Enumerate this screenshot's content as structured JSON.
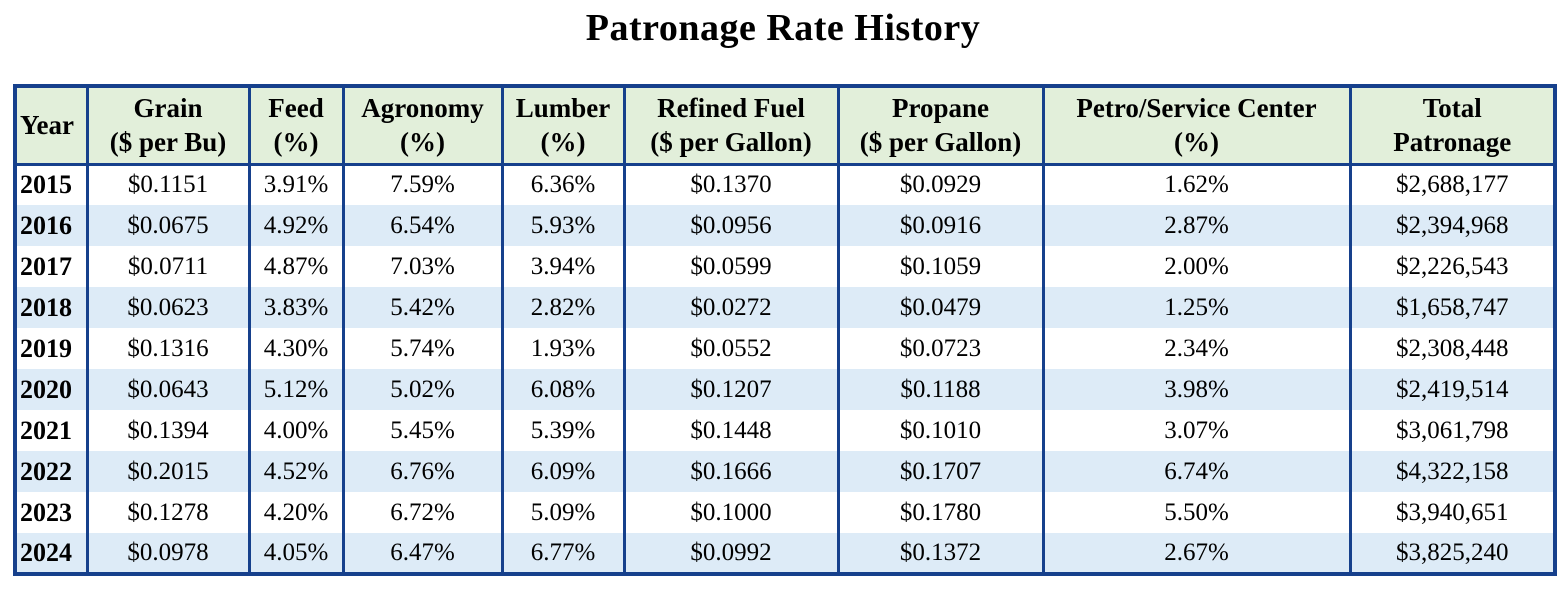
{
  "title": "Patronage Rate History",
  "colors": {
    "border": "#16408C",
    "header_bg": "#E2EFDA",
    "stripe_bg": "#DDEBF7",
    "row_bg": "#FFFFFF"
  },
  "table": {
    "columns": [
      {
        "label": "Year",
        "unit": ""
      },
      {
        "label": "Grain",
        "unit": "($ per Bu)"
      },
      {
        "label": "Feed",
        "unit": "(%)"
      },
      {
        "label": "Agronomy",
        "unit": "(%)"
      },
      {
        "label": "Lumber",
        "unit": "(%)"
      },
      {
        "label": "Refined Fuel",
        "unit": "($ per Gallon)"
      },
      {
        "label": "Propane",
        "unit": "($ per Gallon)"
      },
      {
        "label": "Petro/Service Center",
        "unit": "(%)"
      },
      {
        "label": "Total",
        "unit": "Patronage"
      }
    ],
    "rows": [
      [
        "2015",
        "$0.1151",
        "3.91%",
        "7.59%",
        "6.36%",
        "$0.1370",
        "$0.0929",
        "1.62%",
        "$2,688,177"
      ],
      [
        "2016",
        "$0.0675",
        "4.92%",
        "6.54%",
        "5.93%",
        "$0.0956",
        "$0.0916",
        "2.87%",
        "$2,394,968"
      ],
      [
        "2017",
        "$0.0711",
        "4.87%",
        "7.03%",
        "3.94%",
        "$0.0599",
        "$0.1059",
        "2.00%",
        "$2,226,543"
      ],
      [
        "2018",
        "$0.0623",
        "3.83%",
        "5.42%",
        "2.82%",
        "$0.0272",
        "$0.0479",
        "1.25%",
        "$1,658,747"
      ],
      [
        "2019",
        "$0.1316",
        "4.30%",
        "5.74%",
        "1.93%",
        "$0.0552",
        "$0.0723",
        "2.34%",
        "$2,308,448"
      ],
      [
        "2020",
        "$0.0643",
        "5.12%",
        "5.02%",
        "6.08%",
        "$0.1207",
        "$0.1188",
        "3.98%",
        "$2,419,514"
      ],
      [
        "2021",
        "$0.1394",
        "4.00%",
        "5.45%",
        "5.39%",
        "$0.1448",
        "$0.1010",
        "3.07%",
        "$3,061,798"
      ],
      [
        "2022",
        "$0.2015",
        "4.52%",
        "6.76%",
        "6.09%",
        "$0.1666",
        "$0.1707",
        "6.74%",
        "$4,322,158"
      ],
      [
        "2023",
        "$0.1278",
        "4.20%",
        "6.72%",
        "5.09%",
        "$0.1000",
        "$0.1780",
        "5.50%",
        "$3,940,651"
      ],
      [
        "2024",
        "$0.0978",
        "4.05%",
        "6.47%",
        "6.77%",
        "$0.0992",
        "$0.1372",
        "2.67%",
        "$3,825,240"
      ]
    ]
  },
  "chart_data": {
    "type": "table",
    "title": "Patronage Rate History",
    "columns": [
      "Year",
      "Grain ($ per Bu)",
      "Feed (%)",
      "Agronomy (%)",
      "Lumber (%)",
      "Refined Fuel ($ per Gallon)",
      "Propane ($ per Gallon)",
      "Petro/Service Center (%)",
      "Total Patronage ($)"
    ],
    "rows": [
      [
        2015,
        0.1151,
        3.91,
        7.59,
        6.36,
        0.137,
        0.0929,
        1.62,
        2688177
      ],
      [
        2016,
        0.0675,
        4.92,
        6.54,
        5.93,
        0.0956,
        0.0916,
        2.87,
        2394968
      ],
      [
        2017,
        0.0711,
        4.87,
        7.03,
        3.94,
        0.0599,
        0.1059,
        2.0,
        2226543
      ],
      [
        2018,
        0.0623,
        3.83,
        5.42,
        2.82,
        0.0272,
        0.0479,
        1.25,
        1658747
      ],
      [
        2019,
        0.1316,
        4.3,
        5.74,
        1.93,
        0.0552,
        0.0723,
        2.34,
        2308448
      ],
      [
        2020,
        0.0643,
        5.12,
        5.02,
        6.08,
        0.1207,
        0.1188,
        3.98,
        2419514
      ],
      [
        2021,
        0.1394,
        4.0,
        5.45,
        5.39,
        0.1448,
        0.101,
        3.07,
        3061798
      ],
      [
        2022,
        0.2015,
        4.52,
        6.76,
        6.09,
        0.1666,
        0.1707,
        6.74,
        4322158
      ],
      [
        2023,
        0.1278,
        4.2,
        6.72,
        5.09,
        0.1,
        0.178,
        5.5,
        3940651
      ],
      [
        2024,
        0.0978,
        4.05,
        6.47,
        6.77,
        0.0992,
        0.1372,
        2.67,
        3825240
      ]
    ]
  }
}
